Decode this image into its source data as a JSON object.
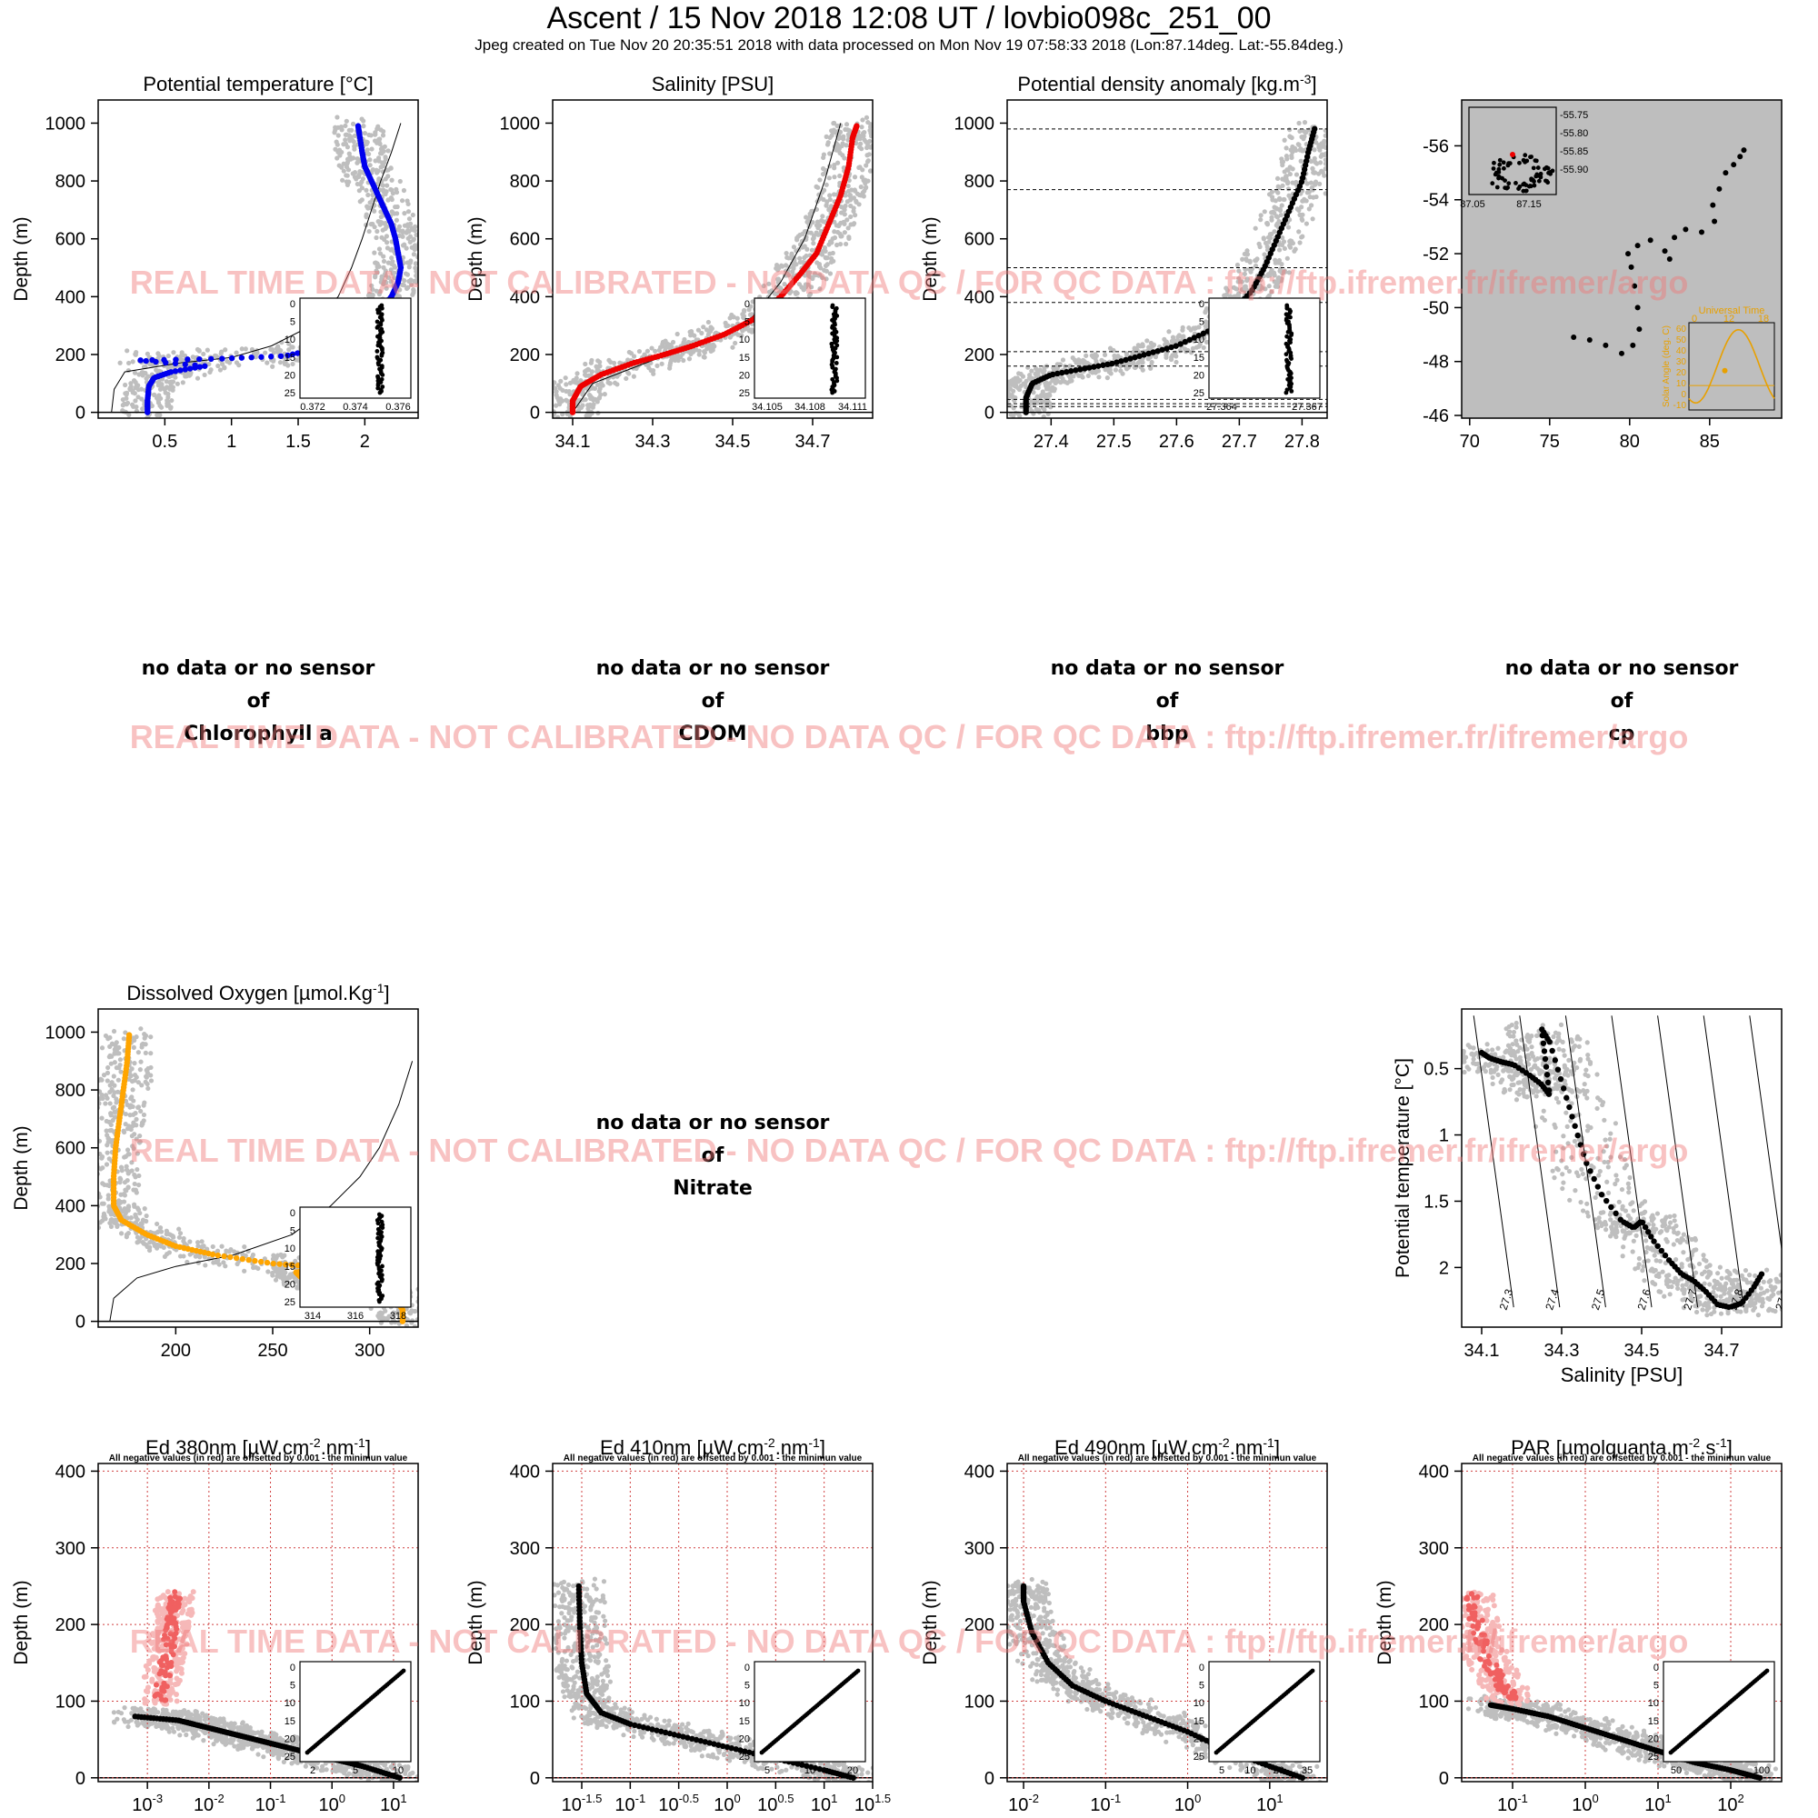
{
  "header": {
    "title": "Ascent / 15 Nov 2018 12:08 UT /  lovbio098c_251_00",
    "subtitle": "Jpeg created on Tue Nov 20 20:35:51 2018 with data processed on Mon Nov 19 07:58:33 2018 (Lon:87.14deg. Lat:-55.84deg.)"
  },
  "watermark": "REAL TIME DATA - NOT CALIBRATED - NO DATA QC   /  FOR QC DATA : ftp://ftp.ifremer.fr/ifremer/argo",
  "no_data": [
    {
      "line1": "no data or no sensor",
      "line2": "of",
      "param": "Chlorophyll a"
    },
    {
      "line1": "no data or no sensor",
      "line2": "of",
      "param": "CDOM"
    },
    {
      "line1": "no data or no sensor",
      "line2": "of",
      "param": "bbp"
    },
    {
      "line1": "no data or no sensor",
      "line2": "of",
      "param": "cp"
    },
    {
      "line1": "no data or no sensor",
      "line2": "of",
      "param": "Nitrate"
    }
  ],
  "radiometry_note": "All negative values (in red) are offsetted by 0.001 - the minimun value",
  "colors": {
    "temperature": "#0000ee",
    "salinity": "#ee0000",
    "oxygen": "#ffa500",
    "history": "#bebebe",
    "profile": "#000000",
    "negative": "#f06060",
    "map_bg": "#bebebe"
  },
  "chart_data": [
    {
      "id": "temp",
      "type": "scatter",
      "title": "Potential temperature [°C]",
      "ylabel": "Depth (m)",
      "xlabel": "",
      "xlim": [
        0.0,
        2.4
      ],
      "ylim": [
        1080,
        -20
      ],
      "xticks": [
        0.5,
        1.0,
        1.5,
        2.0
      ],
      "yticks": [
        0,
        200,
        400,
        600,
        800,
        1000
      ],
      "profile": [
        [
          0.37,
          0
        ],
        [
          0.37,
          40
        ],
        [
          0.38,
          90
        ],
        [
          0.42,
          120
        ],
        [
          0.55,
          140
        ],
        [
          0.8,
          160
        ],
        [
          0.3,
          180
        ],
        [
          0.9,
          185
        ],
        [
          1.4,
          195
        ],
        [
          1.65,
          220
        ],
        [
          1.8,
          260
        ],
        [
          1.95,
          300
        ],
        [
          2.1,
          350
        ],
        [
          2.2,
          400
        ],
        [
          2.25,
          450
        ],
        [
          2.27,
          500
        ],
        [
          2.25,
          550
        ],
        [
          2.23,
          600
        ],
        [
          2.2,
          650
        ],
        [
          2.15,
          700
        ],
        [
          2.1,
          750
        ],
        [
          2.05,
          800
        ],
        [
          2.0,
          850
        ],
        [
          1.98,
          900
        ],
        [
          1.96,
          960
        ],
        [
          1.95,
          990
        ]
      ],
      "density_line": [
        [
          0.1,
          0
        ],
        [
          0.12,
          80
        ],
        [
          0.2,
          140
        ],
        [
          0.6,
          170
        ],
        [
          1.0,
          190
        ],
        [
          1.3,
          230
        ],
        [
          1.6,
          300
        ],
        [
          1.8,
          400
        ],
        [
          1.9,
          500
        ],
        [
          1.98,
          600
        ],
        [
          2.05,
          700
        ],
        [
          2.12,
          800
        ],
        [
          2.2,
          900
        ],
        [
          2.27,
          1000
        ]
      ],
      "inset": {
        "xticks": [
          "0.372",
          "0.374",
          "0.376"
        ],
        "yticks": [
          "0",
          "5",
          "10",
          "15",
          "20",
          "25"
        ]
      }
    },
    {
      "id": "sal",
      "type": "scatter",
      "title": "Salinity [PSU]",
      "ylabel": "Depth (m)",
      "xlabel": "",
      "xlim": [
        34.05,
        34.85
      ],
      "ylim": [
        1080,
        -20
      ],
      "xticks": [
        34.1,
        34.3,
        34.5,
        34.7
      ],
      "yticks": [
        0,
        200,
        400,
        600,
        800,
        1000
      ],
      "profile": [
        [
          34.1,
          0
        ],
        [
          34.1,
          40
        ],
        [
          34.12,
          90
        ],
        [
          34.17,
          130
        ],
        [
          34.25,
          170
        ],
        [
          34.33,
          200
        ],
        [
          34.4,
          230
        ],
        [
          34.48,
          270
        ],
        [
          34.55,
          320
        ],
        [
          34.62,
          400
        ],
        [
          34.67,
          480
        ],
        [
          34.71,
          550
        ],
        [
          34.74,
          650
        ],
        [
          34.77,
          750
        ],
        [
          34.79,
          850
        ],
        [
          34.8,
          950
        ],
        [
          34.81,
          990
        ]
      ],
      "density_line": [
        [
          34.1,
          0
        ],
        [
          34.15,
          100
        ],
        [
          34.3,
          180
        ],
        [
          34.45,
          250
        ],
        [
          34.55,
          330
        ],
        [
          34.62,
          450
        ],
        [
          34.68,
          600
        ],
        [
          34.73,
          800
        ],
        [
          34.77,
          1000
        ]
      ],
      "inset": {
        "xticks": [
          "34.105",
          "34.108",
          "34.111"
        ],
        "yticks": [
          "0",
          "5",
          "10",
          "15",
          "20",
          "25"
        ]
      }
    },
    {
      "id": "dens",
      "type": "scatter",
      "title": "Potential density anomaly [kg.m",
      "title_sup": "-3",
      "title_end": "]",
      "ylabel": "Depth (m)",
      "xlabel": "",
      "xlim": [
        27.33,
        27.84
      ],
      "ylim": [
        1080,
        -20
      ],
      "xticks": [
        27.4,
        27.5,
        27.6,
        27.7,
        27.8
      ],
      "yticks": [
        0,
        200,
        400,
        600,
        800,
        1000
      ],
      "mld_lines": [
        20,
        30,
        45,
        160,
        210,
        380,
        500,
        770,
        980
      ],
      "profile": [
        [
          27.36,
          0
        ],
        [
          27.36,
          50
        ],
        [
          27.37,
          100
        ],
        [
          27.4,
          130
        ],
        [
          27.45,
          150
        ],
        [
          27.5,
          170
        ],
        [
          27.55,
          200
        ],
        [
          27.6,
          230
        ],
        [
          27.65,
          280
        ],
        [
          27.69,
          350
        ],
        [
          27.72,
          420
        ],
        [
          27.74,
          500
        ],
        [
          27.76,
          600
        ],
        [
          27.78,
          700
        ],
        [
          27.8,
          800
        ],
        [
          27.81,
          900
        ],
        [
          27.82,
          980
        ]
      ],
      "inset": {
        "xticks": [
          "27.364",
          "27.367"
        ],
        "yticks": [
          "0",
          "5",
          "10",
          "15",
          "20",
          "25"
        ]
      }
    },
    {
      "id": "map",
      "type": "scatter",
      "title": "",
      "xlabel": "",
      "ylabel": "",
      "xlim": [
        69.5,
        89.5
      ],
      "ylim": [
        -57.7,
        -45.9
      ],
      "xticks": [
        70,
        75,
        80,
        85
      ],
      "yticks": [
        -46,
        -48,
        -50,
        -52,
        -54,
        -56
      ],
      "track": [
        [
          76.5,
          -48.9
        ],
        [
          77.5,
          -48.8
        ],
        [
          78.5,
          -48.6
        ],
        [
          79.5,
          -48.3
        ],
        [
          80.2,
          -48.6
        ],
        [
          80.6,
          -49.2
        ],
        [
          80.5,
          -50.0
        ],
        [
          80.3,
          -50.8
        ],
        [
          80.1,
          -51.5
        ],
        [
          79.9,
          -52.0
        ],
        [
          80.5,
          -52.3
        ],
        [
          81.3,
          -52.5
        ],
        [
          82.2,
          -52.1
        ],
        [
          82.5,
          -51.8
        ],
        [
          82.8,
          -52.6
        ],
        [
          83.5,
          -52.9
        ],
        [
          84.5,
          -52.8
        ],
        [
          85.3,
          -53.2
        ],
        [
          85.2,
          -53.8
        ],
        [
          85.6,
          -54.4
        ],
        [
          86.0,
          -55.0
        ],
        [
          86.5,
          -55.3
        ],
        [
          86.9,
          -55.6
        ],
        [
          87.14,
          -55.84
        ]
      ],
      "inset_map": {
        "xticks": [
          "87.05",
          "87.15"
        ],
        "yticks": [
          "-55.75",
          "-55.80",
          "-55.85",
          "-55.90"
        ]
      },
      "inset_sun": {
        "title": "Universal Time",
        "xticks": [
          "0",
          "12",
          "18"
        ],
        "ylabel": "Solar Angle (deg. C)",
        "yticks": [
          "60",
          "50",
          "40",
          "30",
          "20",
          "10",
          "0",
          "-10"
        ]
      }
    },
    {
      "id": "oxy",
      "type": "scatter",
      "title": "Dissolved Oxygen [µmol.Kg",
      "title_sup": "-1",
      "title_end": "]",
      "ylabel": "Depth (m)",
      "xlabel": "",
      "xlim": [
        160,
        325
      ],
      "ylim": [
        1080,
        -20
      ],
      "xticks": [
        200,
        250,
        300
      ],
      "yticks": [
        0,
        200,
        400,
        600,
        800,
        1000
      ],
      "profile": [
        [
          317,
          0
        ],
        [
          317,
          40
        ],
        [
          312,
          90
        ],
        [
          290,
          130
        ],
        [
          265,
          150
        ],
        [
          262,
          170
        ],
        [
          280,
          185
        ],
        [
          250,
          200
        ],
        [
          220,
          230
        ],
        [
          200,
          260
        ],
        [
          185,
          300
        ],
        [
          172,
          350
        ],
        [
          168,
          400
        ],
        [
          168,
          500
        ],
        [
          169,
          600
        ],
        [
          171,
          700
        ],
        [
          173,
          800
        ],
        [
          175,
          900
        ],
        [
          176,
          990
        ]
      ],
      "density_line": [
        [
          166,
          0
        ],
        [
          168,
          80
        ],
        [
          180,
          150
        ],
        [
          200,
          190
        ],
        [
          230,
          230
        ],
        [
          260,
          300
        ],
        [
          280,
          400
        ],
        [
          295,
          500
        ],
        [
          305,
          600
        ],
        [
          315,
          750
        ],
        [
          322,
          900
        ]
      ],
      "inset": {
        "xticks": [
          "314",
          "316",
          "318"
        ],
        "yticks": [
          "0",
          "5",
          "10",
          "15",
          "20",
          "25"
        ]
      }
    },
    {
      "id": "ts",
      "type": "scatter",
      "title": "",
      "xlabel": "Salinity [PSU]",
      "ylabel": "Potential temperature [°C]",
      "xlim": [
        34.05,
        34.85
      ],
      "ylim": [
        0.05,
        2.45
      ],
      "xticks": [
        34.1,
        34.3,
        34.5,
        34.7
      ],
      "yticks": [
        0.5,
        1.0,
        1.5,
        2.0
      ],
      "isopycnals": [
        "27.3",
        "27.4",
        "27.5",
        "27.6",
        "27.7",
        "27.8",
        "27.9"
      ],
      "profile": [
        [
          34.1,
          0.38
        ],
        [
          34.12,
          0.42
        ],
        [
          34.15,
          0.45
        ],
        [
          34.18,
          0.47
        ],
        [
          34.22,
          0.55
        ],
        [
          34.25,
          0.62
        ],
        [
          34.27,
          0.7
        ],
        [
          34.26,
          0.45
        ],
        [
          34.25,
          0.2
        ],
        [
          34.27,
          0.3
        ],
        [
          34.3,
          0.6
        ],
        [
          34.33,
          0.9
        ],
        [
          34.36,
          1.2
        ],
        [
          34.4,
          1.45
        ],
        [
          34.45,
          1.65
        ],
        [
          34.48,
          1.7
        ],
        [
          34.5,
          1.65
        ],
        [
          34.53,
          1.8
        ],
        [
          34.57,
          1.95
        ],
        [
          34.6,
          2.05
        ],
        [
          34.63,
          2.1
        ],
        [
          34.66,
          2.18
        ],
        [
          34.69,
          2.28
        ],
        [
          34.72,
          2.3
        ],
        [
          34.75,
          2.27
        ],
        [
          34.78,
          2.15
        ],
        [
          34.8,
          2.05
        ]
      ]
    },
    {
      "id": "ed380",
      "type": "scatter",
      "title": "Ed 380nm [µW.cm",
      "title_sup1": "-2",
      "title_mid": ".nm",
      "title_sup2": "-1",
      "title_end": "]",
      "ylabel": "Depth (m)",
      "xlabel": "",
      "xlog": true,
      "xlim": [
        -3.8,
        1.4
      ],
      "ylim": [
        410,
        -5
      ],
      "xticks": [
        -3,
        -2,
        -1,
        0,
        1
      ],
      "yticks": [
        0,
        100,
        200,
        300,
        400
      ],
      "profile": [
        [
          1.1,
          0
        ],
        [
          0.5,
          15
        ],
        [
          0.0,
          25
        ],
        [
          -0.5,
          35
        ],
        [
          -1.0,
          45
        ],
        [
          -1.5,
          55
        ],
        [
          -2.0,
          65
        ],
        [
          -2.5,
          75
        ],
        [
          -3.2,
          80
        ]
      ],
      "negative": [
        [
          -2.8,
          100
        ],
        [
          -2.7,
          150
        ],
        [
          -2.6,
          200
        ],
        [
          -2.55,
          240
        ]
      ],
      "inset": {
        "xticks": [
          "2",
          "5",
          "10"
        ],
        "yticks": [
          "0",
          "5",
          "10",
          "15",
          "20",
          "25"
        ]
      }
    },
    {
      "id": "ed410",
      "type": "scatter",
      "title": "Ed 410nm [µW.cm",
      "title_sup1": "-2",
      "title_mid": ".nm",
      "title_sup2": "-1",
      "title_end": "]",
      "ylabel": "Depth (m)",
      "xlabel": "",
      "xlog": true,
      "xlim": [
        -1.8,
        1.5
      ],
      "ylim": [
        410,
        -5
      ],
      "xticks": [
        -1.5,
        -1,
        -0.5,
        0,
        0.5,
        1,
        1.5
      ],
      "yticks": [
        0,
        100,
        200,
        300,
        400
      ],
      "profile": [
        [
          1.3,
          0
        ],
        [
          1.0,
          10
        ],
        [
          0.5,
          25
        ],
        [
          0.0,
          40
        ],
        [
          -0.5,
          55
        ],
        [
          -1.0,
          70
        ],
        [
          -1.3,
          85
        ],
        [
          -1.45,
          110
        ],
        [
          -1.5,
          150
        ],
        [
          -1.52,
          200
        ],
        [
          -1.53,
          250
        ]
      ],
      "inset": {
        "xticks": [
          "5",
          "10",
          "20"
        ],
        "yticks": [
          "0",
          "5",
          "10",
          "15",
          "20",
          "25"
        ]
      }
    },
    {
      "id": "ed490",
      "type": "scatter",
      "title": "Ed 490nm [µW.cm",
      "title_sup1": "-2",
      "title_mid": ".nm",
      "title_sup2": "-1",
      "title_end": "]",
      "ylabel": "Depth (m)",
      "xlabel": "",
      "xlog": true,
      "xlim": [
        -2.2,
        1.7
      ],
      "ylim": [
        410,
        -5
      ],
      "xticks": [
        -2,
        -1,
        0,
        1
      ],
      "yticks": [
        0,
        100,
        200,
        300,
        400
      ],
      "profile": [
        [
          1.4,
          0
        ],
        [
          1.0,
          15
        ],
        [
          0.5,
          35
        ],
        [
          0.0,
          60
        ],
        [
          -0.5,
          80
        ],
        [
          -1.0,
          100
        ],
        [
          -1.4,
          120
        ],
        [
          -1.7,
          150
        ],
        [
          -1.9,
          190
        ],
        [
          -2.0,
          230
        ],
        [
          -2.0,
          250
        ]
      ],
      "inset": {
        "xticks": [
          "5",
          "10",
          "20",
          "35"
        ],
        "yticks": [
          "0",
          "5",
          "10",
          "15",
          "20",
          "25"
        ]
      }
    },
    {
      "id": "par",
      "type": "scatter",
      "title": "PAR [µmolquanta.m",
      "title_sup1": "-2",
      "title_mid": ".s",
      "title_sup2": "-1",
      "title_end": "]",
      "ylabel": "Depth (m)",
      "xlabel": "",
      "xlog": true,
      "xlim": [
        -1.7,
        2.7
      ],
      "ylim": [
        410,
        -5
      ],
      "xticks": [
        -1,
        0,
        1,
        2
      ],
      "yticks": [
        0,
        100,
        200,
        300,
        400
      ],
      "profile": [
        [
          2.4,
          0
        ],
        [
          2.0,
          10
        ],
        [
          1.5,
          20
        ],
        [
          1.0,
          35
        ],
        [
          0.5,
          50
        ],
        [
          0.0,
          65
        ],
        [
          -0.5,
          80
        ],
        [
          -1.0,
          90
        ],
        [
          -1.3,
          95
        ]
      ],
      "negative": [
        [
          -1.0,
          100
        ],
        [
          -1.2,
          130
        ],
        [
          -1.4,
          160
        ],
        [
          -1.5,
          200
        ],
        [
          -1.55,
          240
        ]
      ],
      "inset": {
        "xticks": [
          "50",
          "100"
        ],
        "yticks": [
          "0",
          "5",
          "10",
          "15",
          "20",
          "25"
        ]
      }
    }
  ]
}
